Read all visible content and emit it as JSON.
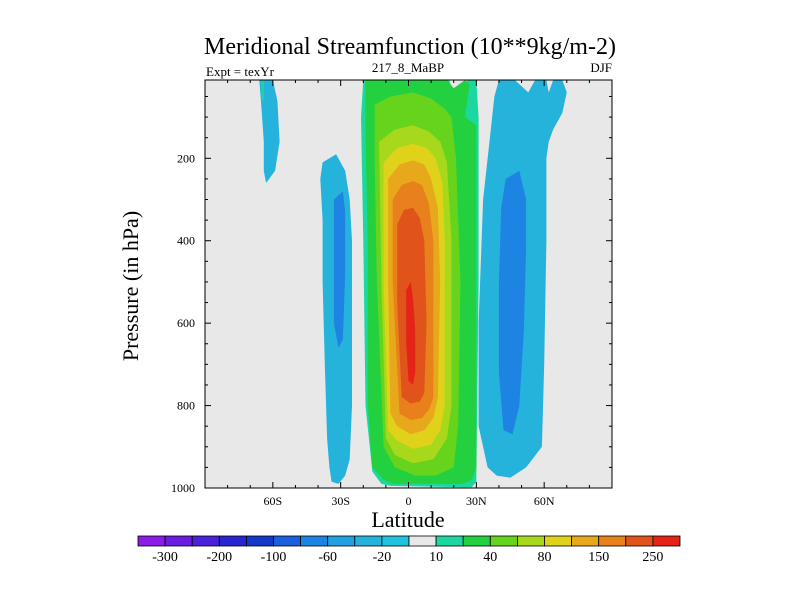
{
  "chart_data": {
    "type": "contour",
    "title": "Meridional Streamfunction (10**9kg/m-2)",
    "subtitle_left": "Expt = texYr",
    "subtitle_center": "217_8_MaBP",
    "subtitle_right": "DJF",
    "xlabel": "Latitude",
    "ylabel": "Pressure (in hPa)",
    "xlim": [
      -90,
      90
    ],
    "ylim": [
      1000,
      10
    ],
    "x_ticks": [
      {
        "value": -60,
        "label": "60S"
      },
      {
        "value": -30,
        "label": "30S"
      },
      {
        "value": 0,
        "label": "0"
      },
      {
        "value": 30,
        "label": "30N"
      },
      {
        "value": 60,
        "label": "60N"
      }
    ],
    "y_ticks": [
      {
        "value": 200,
        "label": "200"
      },
      {
        "value": 400,
        "label": "400"
      },
      {
        "value": 600,
        "label": "600"
      },
      {
        "value": 800,
        "label": "800"
      },
      {
        "value": 1000,
        "label": "1000"
      }
    ],
    "colorbar": {
      "levels": [
        -300,
        -250,
        -200,
        -150,
        -100,
        -80,
        -60,
        -40,
        -20,
        -10,
        10,
        20,
        40,
        60,
        80,
        100,
        150,
        200,
        250
      ],
      "labels": [
        "-300",
        "-200",
        "-100",
        "-60",
        "-20",
        "10",
        "40",
        "80",
        "150",
        "250"
      ],
      "colors": [
        "#8a1ce6",
        "#6a1fe0",
        "#4b22da",
        "#2a25d2",
        "#1439c8",
        "#1a60dc",
        "#1e84e4",
        "#23a0e0",
        "#25b3dc",
        "#20c2dc",
        "#e8e8e8",
        "#1cd8a0",
        "#22d040",
        "#66d31c",
        "#a8d81c",
        "#e0d21a",
        "#e8a81c",
        "#e8801c",
        "#e0541c",
        "#e42418"
      ]
    },
    "background_color": "#e8e8e8",
    "contours": [
      {
        "level": "negative_weak",
        "color": "#25b3dc",
        "x": [
          -64,
          -60,
          -58,
          -57,
          -59,
          -63,
          -64,
          -64,
          -65,
          -66
        ],
        "y": [
          10,
          10,
          60,
          160,
          230,
          260,
          230,
          160,
          80,
          10
        ]
      },
      {
        "level": "negative_weak",
        "color": "#25b3dc",
        "x": [
          -38,
          -32,
          -28,
          -26,
          -25,
          -25,
          -25,
          -26,
          -28,
          -31,
          -34,
          -35,
          -36,
          -37,
          -38,
          -38,
          -39
        ],
        "y": [
          210,
          190,
          230,
          300,
          400,
          600,
          800,
          930,
          970,
          990,
          985,
          950,
          880,
          700,
          500,
          350,
          250
        ]
      },
      {
        "level": "negative_moderate",
        "color": "#1e84e4",
        "x": [
          -33,
          -29,
          -28,
          -28,
          -29,
          -31,
          -33,
          -33
        ],
        "y": [
          300,
          280,
          330,
          480,
          640,
          660,
          600,
          400
        ]
      },
      {
        "level": "negative_weak",
        "color": "#25b3dc",
        "x": [
          40,
          47,
          53,
          56,
          58,
          61,
          62,
          64,
          68,
          70,
          68,
          64,
          62,
          61,
          61,
          60,
          59,
          52,
          45,
          39,
          35,
          31,
          31,
          33,
          36,
          38
        ],
        "y": [
          10,
          10,
          40,
          10,
          10,
          10,
          40,
          10,
          10,
          40,
          90,
          130,
          160,
          200,
          400,
          700,
          900,
          950,
          975,
          970,
          950,
          850,
          600,
          300,
          150,
          50
        ]
      },
      {
        "level": "negative_moderate",
        "color": "#1e84e4",
        "x": [
          43,
          49,
          52,
          52,
          51,
          49,
          46,
          42,
          40,
          40,
          41
        ],
        "y": [
          250,
          230,
          300,
          420,
          620,
          800,
          870,
          860,
          720,
          500,
          320
        ]
      },
      {
        "level": "positive_weak",
        "color": "#1cd8a0",
        "x": [
          -65,
          -64,
          -64,
          -65
        ],
        "y": [
          10,
          10,
          60,
          60
        ]
      },
      {
        "level": "positive_weak",
        "color": "#1cd8a0",
        "x": [
          -20,
          18,
          21,
          26,
          28,
          30,
          31,
          31,
          30,
          28,
          24,
          -8,
          -12,
          -16,
          -19,
          -20,
          -21
        ],
        "y": [
          10,
          10,
          60,
          10,
          10,
          10,
          100,
          500,
          985,
          998,
          998,
          995,
          990,
          960,
          800,
          400,
          100
        ]
      },
      {
        "level": "positive_20",
        "color": "#22d040",
        "x": [
          -19,
          17,
          20,
          25,
          27,
          26,
          25,
          30,
          30,
          28,
          24,
          -7,
          -11,
          -16,
          -18,
          -18,
          -19
        ],
        "y": [
          10,
          10,
          30,
          10,
          20,
          60,
          100,
          120,
          950,
          980,
          990,
          990,
          980,
          950,
          800,
          400,
          150
        ]
      },
      {
        "level": "positive_40",
        "color": "#66d31c",
        "x": [
          -15,
          -8,
          2,
          10,
          16,
          19,
          21,
          23,
          22,
          20,
          12,
          3,
          -6,
          -11,
          -14,
          -15
        ],
        "y": [
          70,
          50,
          40,
          55,
          80,
          100,
          200,
          500,
          850,
          950,
          970,
          970,
          950,
          900,
          500,
          200
        ]
      },
      {
        "level": "positive_60",
        "color": "#a8d81c",
        "x": [
          -13,
          -6,
          2,
          9,
          14,
          17,
          19,
          19,
          17,
          11,
          2,
          -6,
          -10,
          -12
        ],
        "y": [
          160,
          130,
          120,
          135,
          160,
          210,
          400,
          800,
          880,
          930,
          940,
          920,
          880,
          500
        ]
      },
      {
        "level": "positive_80",
        "color": "#e0d21a",
        "x": [
          -11,
          -5,
          2,
          8,
          12,
          15,
          16,
          16,
          14,
          10,
          2,
          -5,
          -9,
          -11
        ],
        "y": [
          210,
          175,
          165,
          175,
          200,
          260,
          400,
          800,
          860,
          895,
          905,
          885,
          860,
          500
        ]
      },
      {
        "level": "positive_100",
        "color": "#e8a81c",
        "x": [
          -9,
          -4,
          2,
          7,
          10,
          13,
          14,
          13,
          11,
          7,
          1,
          -5,
          -8,
          -9
        ],
        "y": [
          250,
          215,
          205,
          215,
          250,
          320,
          500,
          780,
          830,
          860,
          870,
          850,
          820,
          500
        ]
      },
      {
        "level": "positive_150",
        "color": "#e8801c",
        "x": [
          -7,
          -3,
          2,
          6,
          9,
          11,
          11,
          9,
          6,
          1,
          -4,
          -7
        ],
        "y": [
          300,
          265,
          255,
          265,
          310,
          400,
          780,
          810,
          830,
          835,
          820,
          500
        ]
      },
      {
        "level": "positive_200",
        "color": "#e0541c",
        "x": [
          -5,
          -2,
          2,
          5,
          7,
          8,
          7,
          5,
          1,
          -3,
          -5
        ],
        "y": [
          360,
          325,
          320,
          345,
          400,
          600,
          770,
          790,
          795,
          780,
          550
        ]
      },
      {
        "level": "positive_250",
        "color": "#e42418",
        "x": [
          -1,
          1,
          2,
          3,
          3,
          2,
          0,
          -1
        ],
        "y": [
          520,
          500,
          540,
          620,
          720,
          750,
          740,
          650
        ]
      }
    ]
  }
}
